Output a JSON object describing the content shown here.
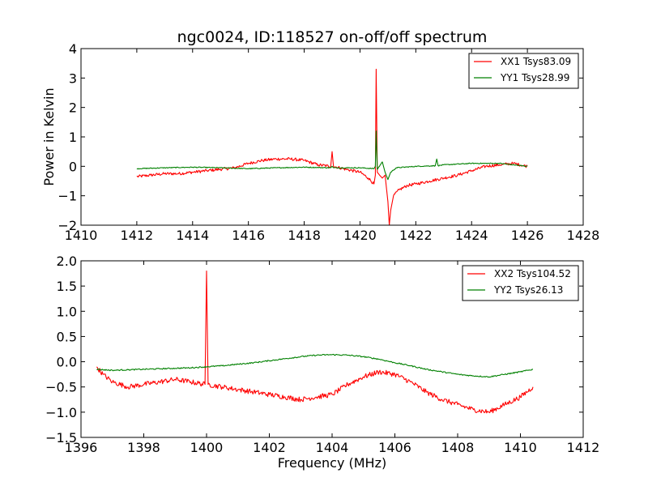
{
  "chart_data": [
    {
      "type": "line",
      "title": "ngc0024, ID:118527 on-off/off spectrum",
      "xlabel": "",
      "ylabel": "Power in Kelvin",
      "xlim": [
        1410,
        1428
      ],
      "ylim": [
        -2,
        4
      ],
      "xticks": [
        "1410",
        "1412",
        "1414",
        "1416",
        "1418",
        "1420",
        "1422",
        "1424",
        "1426",
        "1428"
      ],
      "yticks": [
        "−2",
        "−1",
        "0",
        "1",
        "2",
        "3",
        "4"
      ],
      "legend_position": "top-right",
      "series": [
        {
          "name": "XX1 Tsys83.09",
          "color": "#ff0000",
          "x": [
            1412.0,
            1412.5,
            1413.0,
            1413.5,
            1414.0,
            1414.5,
            1415.0,
            1415.5,
            1416.0,
            1416.5,
            1417.0,
            1417.5,
            1418.0,
            1418.5,
            1418.95,
            1419.0,
            1419.05,
            1419.5,
            1420.0,
            1420.3,
            1420.5,
            1420.55,
            1420.58,
            1420.62,
            1420.7,
            1420.8,
            1420.9,
            1421.0,
            1421.05,
            1421.1,
            1421.2,
            1421.4,
            1421.7,
            1422.0,
            1422.5,
            1423.0,
            1423.5,
            1424.0,
            1424.5,
            1425.0,
            1425.5,
            1426.0
          ],
          "y": [
            -0.35,
            -0.3,
            -0.25,
            -0.25,
            -0.2,
            -0.15,
            -0.1,
            -0.05,
            0.1,
            0.2,
            0.25,
            0.25,
            0.2,
            0.05,
            0.0,
            0.5,
            0.0,
            -0.1,
            -0.2,
            -0.4,
            -0.6,
            -0.3,
            3.3,
            -0.2,
            -0.3,
            -0.4,
            -0.3,
            -1.2,
            -2.0,
            -1.5,
            -1.0,
            -0.8,
            -0.65,
            -0.6,
            -0.5,
            -0.4,
            -0.3,
            -0.15,
            0.0,
            0.05,
            0.1,
            0.0
          ]
        },
        {
          "name": "YY1 Tsys28.99",
          "color": "#008000",
          "x": [
            1412.0,
            1413.0,
            1414.0,
            1415.0,
            1416.0,
            1417.0,
            1418.0,
            1418.95,
            1419.0,
            1419.05,
            1420.0,
            1420.5,
            1420.55,
            1420.58,
            1420.62,
            1420.8,
            1420.9,
            1421.0,
            1421.1,
            1421.3,
            1422.0,
            1422.7,
            1422.75,
            1422.8,
            1423.0,
            1424.0,
            1425.0,
            1426.0
          ],
          "y": [
            -0.08,
            -0.05,
            -0.03,
            -0.05,
            -0.08,
            -0.05,
            -0.03,
            -0.05,
            0.0,
            -0.05,
            -0.05,
            -0.08,
            0.0,
            1.2,
            -0.1,
            0.15,
            -0.2,
            -0.45,
            -0.2,
            -0.05,
            0.0,
            0.02,
            0.25,
            0.02,
            0.05,
            0.1,
            0.1,
            0.0
          ]
        }
      ]
    },
    {
      "type": "line",
      "title": "",
      "xlabel": "Frequency (MHz)",
      "ylabel": "",
      "xlim": [
        1396,
        1412
      ],
      "ylim": [
        -1.5,
        2.0
      ],
      "xticks": [
        "1396",
        "1398",
        "1400",
        "1402",
        "1404",
        "1406",
        "1408",
        "1410",
        "1412"
      ],
      "yticks": [
        "−1.5",
        "−1.0",
        "−0.5",
        "0.0",
        "0.5",
        "1.0",
        "1.5",
        "2.0"
      ],
      "legend_position": "top-right",
      "series": [
        {
          "name": "XX2 Tsys104.52",
          "color": "#ff0000",
          "x": [
            1396.5,
            1396.7,
            1397.0,
            1397.5,
            1398.0,
            1398.5,
            1399.0,
            1399.5,
            1399.95,
            1400.0,
            1400.05,
            1400.5,
            1401.0,
            1401.5,
            1402.0,
            1402.5,
            1403.0,
            1403.5,
            1404.0,
            1404.5,
            1405.0,
            1405.5,
            1406.0,
            1406.5,
            1407.0,
            1407.5,
            1408.0,
            1408.5,
            1409.0,
            1409.5,
            1410.0,
            1410.4
          ],
          "y": [
            -0.1,
            -0.25,
            -0.4,
            -0.5,
            -0.45,
            -0.4,
            -0.35,
            -0.4,
            -0.45,
            1.8,
            -0.45,
            -0.5,
            -0.55,
            -0.6,
            -0.65,
            -0.7,
            -0.75,
            -0.7,
            -0.65,
            -0.45,
            -0.3,
            -0.2,
            -0.25,
            -0.4,
            -0.6,
            -0.75,
            -0.85,
            -0.95,
            -1.0,
            -0.85,
            -0.7,
            -0.5
          ]
        },
        {
          "name": "YY2 Tsys26.13",
          "color": "#008000",
          "x": [
            1396.5,
            1397.0,
            1397.5,
            1398.0,
            1398.5,
            1399.0,
            1399.5,
            1400.0,
            1400.5,
            1401.0,
            1401.5,
            1402.0,
            1402.5,
            1403.0,
            1403.5,
            1404.0,
            1404.5,
            1405.0,
            1405.5,
            1406.0,
            1406.5,
            1407.0,
            1407.5,
            1408.0,
            1408.5,
            1409.0,
            1409.5,
            1410.0,
            1410.4
          ],
          "y": [
            -0.15,
            -0.17,
            -0.16,
            -0.15,
            -0.14,
            -0.13,
            -0.12,
            -0.1,
            -0.08,
            -0.05,
            -0.02,
            0.02,
            0.06,
            0.1,
            0.13,
            0.14,
            0.13,
            0.1,
            0.05,
            -0.02,
            -0.08,
            -0.15,
            -0.2,
            -0.25,
            -0.28,
            -0.3,
            -0.25,
            -0.2,
            -0.15
          ]
        }
      ]
    }
  ]
}
